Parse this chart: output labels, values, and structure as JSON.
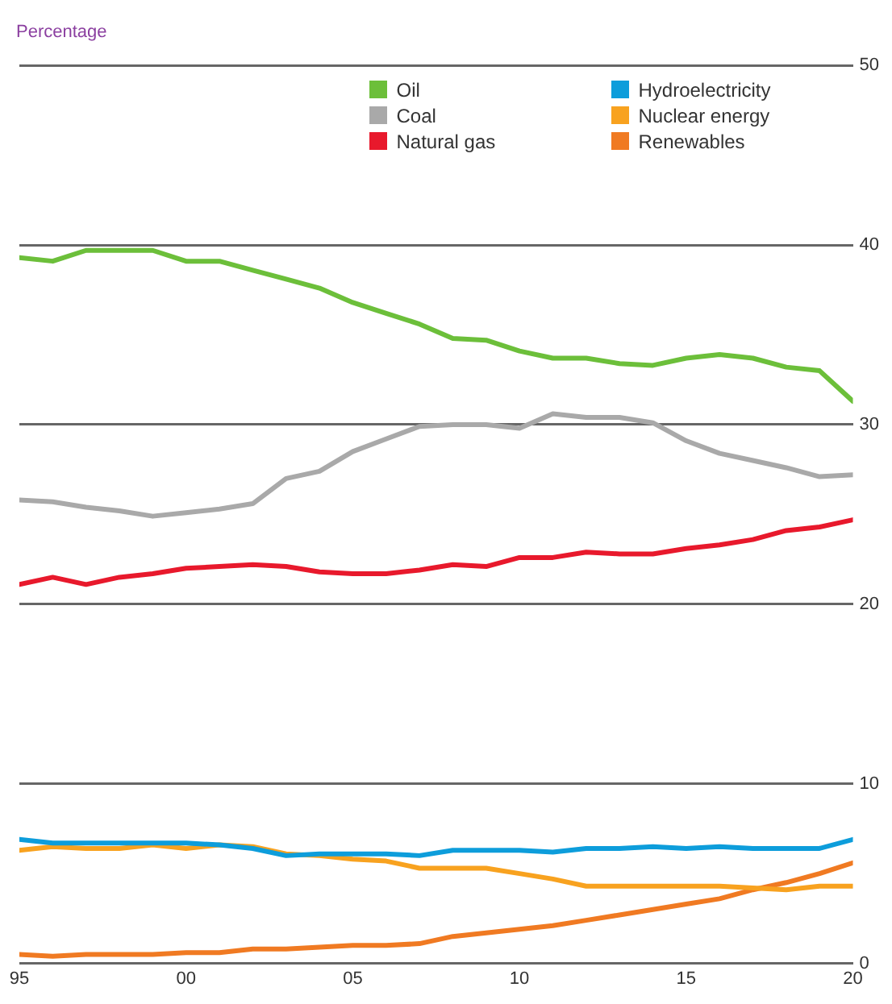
{
  "chart_data": {
    "type": "line",
    "ylabel": "Percentage",
    "x": [
      1995,
      1996,
      1997,
      1998,
      1999,
      2000,
      2001,
      2002,
      2003,
      2004,
      2005,
      2006,
      2007,
      2008,
      2009,
      2010,
      2011,
      2012,
      2013,
      2014,
      2015,
      2016,
      2017,
      2018,
      2019,
      2020
    ],
    "xlim": [
      1995,
      2020
    ],
    "xticks": [
      {
        "value": 1995,
        "label": "95"
      },
      {
        "value": 2000,
        "label": "00"
      },
      {
        "value": 2005,
        "label": "05"
      },
      {
        "value": 2010,
        "label": "10"
      },
      {
        "value": 2015,
        "label": "15"
      },
      {
        "value": 2020,
        "label": "20"
      }
    ],
    "ylim": [
      0,
      50
    ],
    "yticks": [
      0,
      10,
      20,
      30,
      40,
      50
    ],
    "grid": "y",
    "legend": "top right",
    "marker": "none",
    "line_style": "solid",
    "series": [
      {
        "name": "Oil",
        "color": "#6cbf3a",
        "values": [
          39.3,
          39.1,
          39.7,
          39.7,
          39.7,
          39.1,
          39.1,
          38.6,
          38.1,
          37.6,
          36.8,
          36.2,
          35.6,
          34.8,
          34.7,
          34.1,
          33.7,
          33.7,
          33.4,
          33.3,
          33.7,
          33.9,
          33.7,
          33.2,
          33.0,
          31.3
        ]
      },
      {
        "name": "Coal",
        "color": "#a9a9a9",
        "values": [
          25.8,
          25.7,
          25.4,
          25.2,
          24.9,
          25.1,
          25.3,
          25.6,
          27.0,
          27.4,
          28.5,
          29.2,
          29.9,
          30.0,
          30.0,
          29.8,
          30.6,
          30.4,
          30.4,
          30.1,
          29.1,
          28.4,
          28.0,
          27.6,
          27.1,
          27.2
        ]
      },
      {
        "name": "Natural gas",
        "color": "#e8192c",
        "values": [
          21.1,
          21.5,
          21.1,
          21.5,
          21.7,
          22.0,
          22.1,
          22.2,
          22.1,
          21.8,
          21.7,
          21.7,
          21.9,
          22.2,
          22.1,
          22.6,
          22.6,
          22.9,
          22.8,
          22.8,
          23.1,
          23.3,
          23.6,
          24.1,
          24.3,
          24.7
        ]
      },
      {
        "name": "Hydroelectricity",
        "color": "#0d9ddb",
        "values": [
          6.9,
          6.7,
          6.7,
          6.7,
          6.7,
          6.7,
          6.6,
          6.4,
          6.0,
          6.1,
          6.1,
          6.1,
          6.0,
          6.3,
          6.3,
          6.3,
          6.2,
          6.4,
          6.4,
          6.5,
          6.4,
          6.5,
          6.4,
          6.4,
          6.4,
          6.9
        ]
      },
      {
        "name": "Nuclear energy",
        "color": "#f8a21f",
        "values": [
          6.3,
          6.5,
          6.4,
          6.4,
          6.6,
          6.4,
          6.6,
          6.5,
          6.1,
          6.0,
          5.8,
          5.7,
          5.3,
          5.3,
          5.3,
          5.0,
          4.7,
          4.3,
          4.3,
          4.3,
          4.3,
          4.3,
          4.2,
          4.1,
          4.3,
          4.3
        ]
      },
      {
        "name": "Renewables",
        "color": "#f07a22",
        "values": [
          0.5,
          0.4,
          0.5,
          0.5,
          0.5,
          0.6,
          0.6,
          0.8,
          0.8,
          0.9,
          1.0,
          1.0,
          1.1,
          1.5,
          1.7,
          1.9,
          2.1,
          2.4,
          2.7,
          3.0,
          3.3,
          3.6,
          4.1,
          4.5,
          5.0,
          5.6
        ]
      }
    ]
  }
}
